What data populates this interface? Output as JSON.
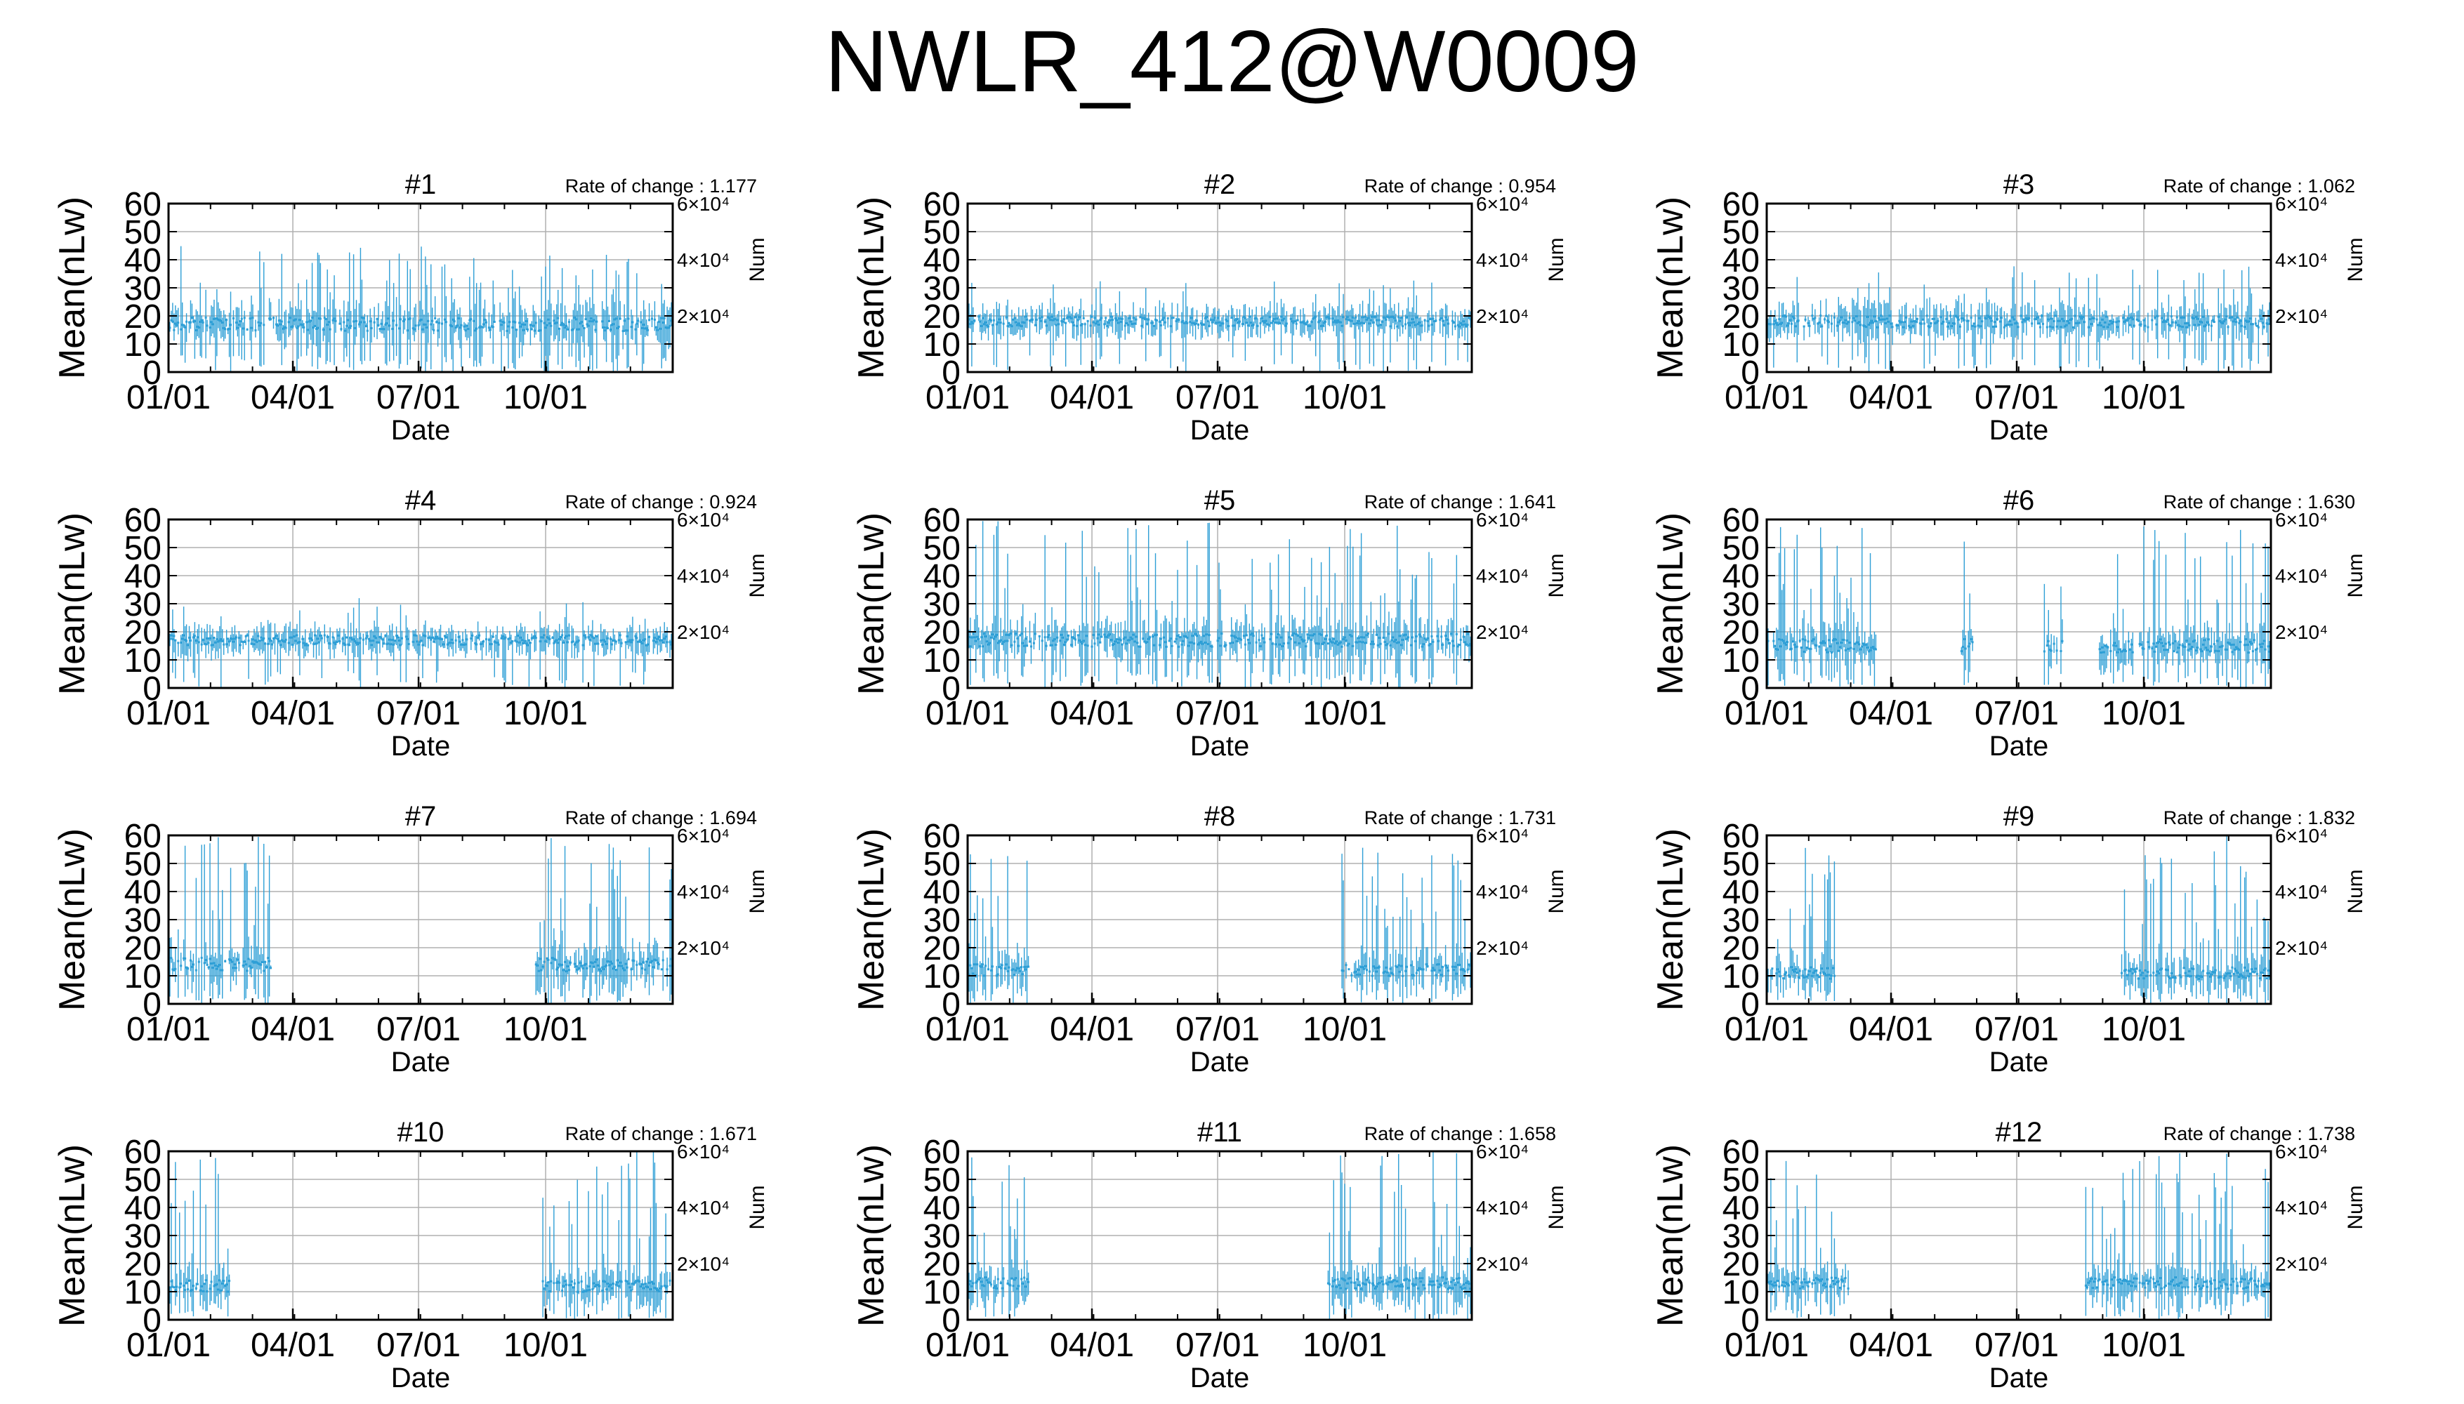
{
  "title": "NWLR_412@W0009",
  "colors": {
    "line": "#2e9fd6",
    "grid": "#b0b0b0",
    "axis": "#000000",
    "background": "#ffffff"
  },
  "chart_data": {
    "type": "line",
    "x_tick_labels": [
      "01/01",
      "04/01",
      "07/01",
      "10/01"
    ],
    "x_tick_days": [
      0,
      90,
      181,
      273
    ],
    "xlim_days": [
      0,
      365
    ],
    "xlabel": "Date",
    "ylabel": "Mean(nLw)",
    "y_ticks": [
      0,
      10,
      20,
      30,
      40,
      50,
      60
    ],
    "ylim": [
      0,
      60
    ],
    "y2label": "Num",
    "y2_ticks": [
      "2×10⁴",
      "4×10⁴",
      "6×10⁴"
    ],
    "y2_tick_values": [
      20000,
      40000,
      60000
    ],
    "y2lim": [
      0,
      60000
    ],
    "rate_prefix": "Rate of change : ",
    "grid": true,
    "panels": [
      {
        "label": "#1",
        "rate": "1.177",
        "gaps": [],
        "base": 17,
        "spread": 8,
        "spike_prob": 0.35,
        "spike_max": 45
      },
      {
        "label": "#2",
        "rate": "0.954",
        "gaps": [],
        "base": 18,
        "spread": 6,
        "spike_prob": 0.15,
        "spike_max": 33
      },
      {
        "label": "#3",
        "rate": "1.062",
        "gaps": [],
        "base": 18,
        "spread": 7,
        "spike_prob": 0.18,
        "spike_max": 38
      },
      {
        "label": "#4",
        "rate": "0.924",
        "gaps": [],
        "base": 17,
        "spread": 6,
        "spike_prob": 0.12,
        "spike_max": 32
      },
      {
        "label": "#5",
        "rate": "1.641",
        "gaps": [],
        "base": 17,
        "spread": 8,
        "spike_prob": 0.3,
        "spike_max": 60
      },
      {
        "label": "#6",
        "rate": "1.630",
        "gaps": [
          [
            80,
            140
          ],
          [
            150,
            200
          ],
          [
            215,
            240
          ]
        ],
        "base": 15,
        "spread": 8,
        "spike_prob": 0.3,
        "spike_max": 60
      },
      {
        "label": "#7",
        "rate": "1.694",
        "gaps": [
          [
            75,
            265
          ]
        ],
        "base": 14,
        "spread": 8,
        "spike_prob": 0.35,
        "spike_max": 60
      },
      {
        "label": "#8",
        "rate": "1.731",
        "gaps": [
          [
            45,
            270
          ]
        ],
        "base": 12,
        "spread": 7,
        "spike_prob": 0.4,
        "spike_max": 60
      },
      {
        "label": "#9",
        "rate": "1.832",
        "gaps": [
          [
            50,
            255
          ]
        ],
        "base": 11,
        "spread": 7,
        "spike_prob": 0.45,
        "spike_max": 60
      },
      {
        "label": "#10",
        "rate": "1.671",
        "gaps": [
          [
            45,
            270
          ]
        ],
        "base": 12,
        "spread": 7,
        "spike_prob": 0.4,
        "spike_max": 60
      },
      {
        "label": "#11",
        "rate": "1.658",
        "gaps": [
          [
            45,
            260
          ]
        ],
        "base": 13,
        "spread": 7,
        "spike_prob": 0.35,
        "spike_max": 60
      },
      {
        "label": "#12",
        "rate": "1.738",
        "gaps": [
          [
            60,
            230
          ]
        ],
        "base": 13,
        "spread": 7,
        "spike_prob": 0.3,
        "spike_max": 60
      }
    ]
  }
}
